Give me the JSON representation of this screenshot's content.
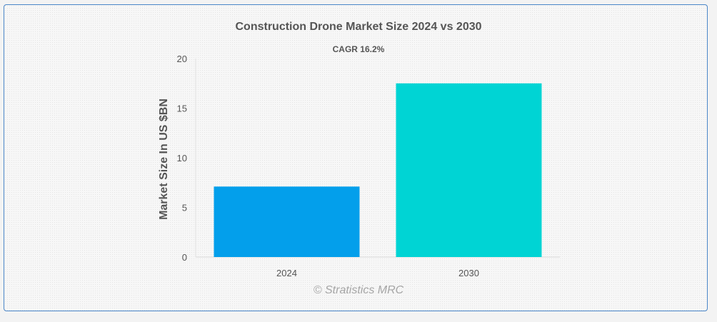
{
  "colors": {
    "bar_2024": "#039FEB",
    "bar_2030": "#00D4D4",
    "frame_border": "#4a86c8",
    "text": "#555555"
  },
  "watermark": "© Stratistics MRC",
  "chart_data": {
    "type": "bar",
    "title": "Construction Drone Market Size 2024 vs 2030",
    "subtitle": "CAGR 16.2%",
    "categories": [
      "2024",
      "2030"
    ],
    "values": [
      7.1,
      17.5
    ],
    "xlabel": "",
    "ylabel": "Market Size In US $BN",
    "ylim": [
      0,
      20
    ],
    "yticks": [
      0,
      5,
      10,
      15,
      20
    ],
    "grid": false,
    "legend": "none"
  }
}
